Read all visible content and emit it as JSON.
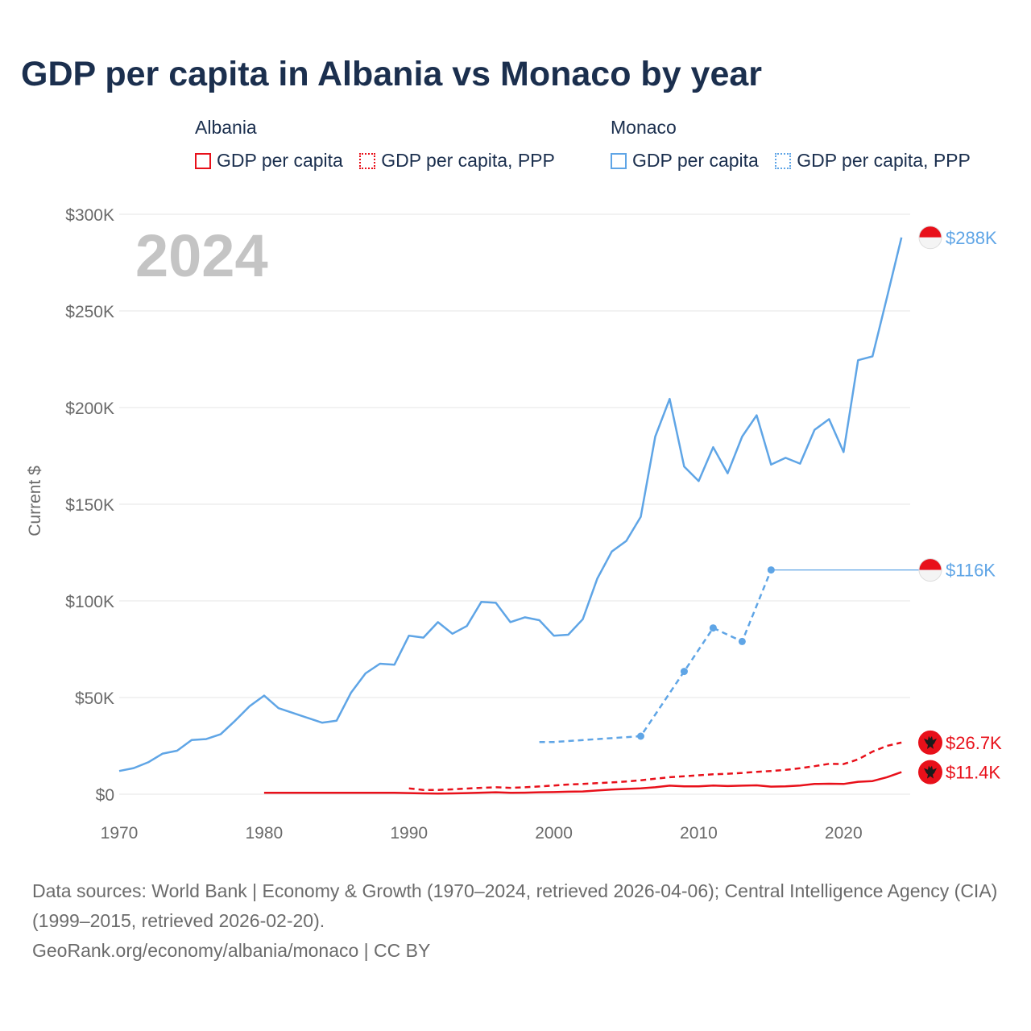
{
  "title": "GDP per capita in Albania vs Monaco by year",
  "legend": {
    "albania": {
      "name": "Albania",
      "gdp": "GDP per capita",
      "ppp": "GDP per capita, PPP"
    },
    "monaco": {
      "name": "Monaco",
      "gdp": "GDP per capita",
      "ppp": "GDP per capita, PPP"
    }
  },
  "colors": {
    "albania": "#e8101a",
    "monaco": "#5fa5e6",
    "grid": "#e6e6e6",
    "year_label": "#c4c4c4",
    "text": "#1b2f4e"
  },
  "sources": {
    "line1": "Data sources: World Bank | Economy & Growth (1970–2024, retrieved 2026-04-06); Central Intelligence Agency (CIA) (1999–2015, retrieved 2026-02-20).",
    "line2": "GeoRank.org/economy/albania/monaco | CC BY"
  },
  "chart_data": {
    "type": "line",
    "title": "GDP per capita in Albania vs Monaco by year",
    "year_label": "2024",
    "ylabel": "Current $",
    "xlabel": "",
    "xlim": [
      1970,
      2024.6
    ],
    "ylim": [
      0,
      300000
    ],
    "x_ticks": [
      1970,
      1980,
      1990,
      2000,
      2010,
      2020
    ],
    "y_ticks": [
      {
        "value": 0,
        "label": "$0"
      },
      {
        "value": 50000,
        "label": "$50K"
      },
      {
        "value": 100000,
        "label": "$100K"
      },
      {
        "value": 150000,
        "label": "$150K"
      },
      {
        "value": 200000,
        "label": "$200K"
      },
      {
        "value": 250000,
        "label": "$250K"
      },
      {
        "value": 300000,
        "label": "$300K"
      }
    ],
    "grid": true,
    "series": [
      {
        "name": "Monaco GDP per capita",
        "country": "monaco",
        "style": "solid",
        "end_label": "$288K",
        "x": [
          1970,
          1971,
          1972,
          1973,
          1974,
          1975,
          1976,
          1977,
          1978,
          1979,
          1980,
          1981,
          1982,
          1983,
          1984,
          1985,
          1986,
          1987,
          1988,
          1989,
          1990,
          1991,
          1992,
          1993,
          1994,
          1995,
          1996,
          1997,
          1998,
          1999,
          2000,
          2001,
          2002,
          2003,
          2004,
          2005,
          2006,
          2007,
          2008,
          2009,
          2010,
          2011,
          2012,
          2013,
          2014,
          2015,
          2016,
          2017,
          2018,
          2019,
          2020,
          2021,
          2022,
          2023,
          2024
        ],
        "values": [
          12000,
          13500,
          16500,
          21000,
          22500,
          28000,
          28500,
          31000,
          38000,
          45500,
          51000,
          44500,
          42000,
          39500,
          37000,
          38000,
          52500,
          62500,
          67500,
          67000,
          82000,
          81000,
          89000,
          83000,
          87000,
          99500,
          99000,
          89000,
          91500,
          90000,
          82000,
          82500,
          90500,
          111500,
          125500,
          131000,
          143500,
          185000,
          204500,
          169500,
          162000,
          179500,
          166000,
          185000,
          196000,
          170500,
          174000,
          171000,
          188500,
          194000,
          177000,
          224500,
          226500,
          257000,
          288000
        ]
      },
      {
        "name": "Monaco GDP per capita, PPP",
        "country": "monaco",
        "style": "dashed",
        "end_label": "$116K",
        "x": [
          1999,
          2000,
          2006,
          2009,
          2011,
          2013,
          2015
        ],
        "values": [
          27000,
          27000,
          30000,
          63500,
          86000,
          79000,
          116000
        ],
        "markers": [
          2006,
          2009,
          2011,
          2013,
          2015
        ],
        "extend_to": 2024
      },
      {
        "name": "Albania GDP per capita, PPP",
        "country": "albania",
        "style": "dashed",
        "end_label": "$26.7K",
        "x": [
          1990,
          1991,
          1992,
          1993,
          1994,
          1995,
          1996,
          1997,
          1998,
          1999,
          2000,
          2001,
          2002,
          2003,
          2004,
          2005,
          2006,
          2007,
          2008,
          2009,
          2010,
          2011,
          2012,
          2013,
          2014,
          2015,
          2016,
          2017,
          2018,
          2019,
          2020,
          2021,
          2022,
          2023,
          2024
        ],
        "values": [
          3000,
          2200,
          2200,
          2500,
          2900,
          3300,
          3600,
          3300,
          3600,
          4000,
          4500,
          5000,
          5300,
          5700,
          6100,
          6600,
          7200,
          8000,
          8800,
          9300,
          9800,
          10300,
          10600,
          11000,
          11600,
          12000,
          12600,
          13400,
          14500,
          15700,
          15600,
          18000,
          22000,
          25000,
          26700
        ]
      },
      {
        "name": "Albania GDP per capita",
        "country": "albania",
        "style": "solid",
        "end_label": "$11.4K",
        "x": [
          1980,
          1981,
          1982,
          1983,
          1984,
          1985,
          1986,
          1987,
          1988,
          1989,
          1990,
          1991,
          1992,
          1993,
          1994,
          1995,
          1996,
          1997,
          1998,
          1999,
          2000,
          2001,
          2002,
          2003,
          2004,
          2005,
          2006,
          2007,
          2008,
          2009,
          2010,
          2011,
          2012,
          2013,
          2014,
          2015,
          2016,
          2017,
          2018,
          2019,
          2020,
          2021,
          2022,
          2023,
          2024
        ],
        "values": [
          700,
          700,
          700,
          700,
          700,
          700,
          700,
          700,
          700,
          700,
          600,
          400,
          300,
          400,
          600,
          800,
          1000,
          700,
          800,
          1000,
          1100,
          1300,
          1400,
          1900,
          2400,
          2700,
          3000,
          3600,
          4400,
          4100,
          4100,
          4500,
          4200,
          4400,
          4600,
          3900,
          4100,
          4500,
          5300,
          5400,
          5300,
          6400,
          6800,
          8800,
          11400
        ]
      }
    ]
  }
}
